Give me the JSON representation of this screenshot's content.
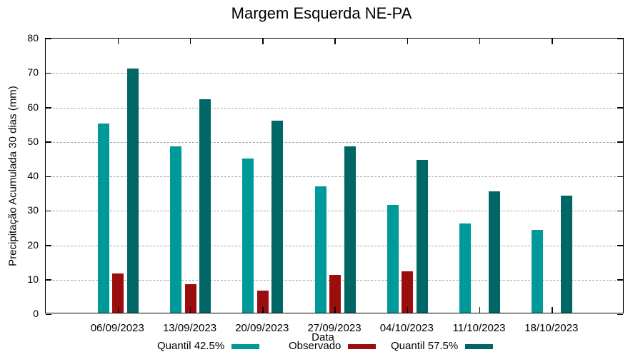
{
  "chart_data": {
    "type": "bar",
    "title": "Margem Esquerda NE-PA",
    "xlabel": "Data",
    "ylabel": "Precipitação Acumulada 30 dias (mm)",
    "categories": [
      "06/09/2023",
      "13/09/2023",
      "20/09/2023",
      "27/09/2023",
      "04/10/2023",
      "11/10/2023",
      "18/10/2023"
    ],
    "series": [
      {
        "name": "Quantil 42.5%",
        "color": "#009999",
        "values": [
          55.3,
          48.8,
          45.2,
          37.1,
          31.8,
          26.4,
          24.5
        ]
      },
      {
        "name": "Observado",
        "color": "#9b0e0e",
        "values": [
          11.8,
          8.8,
          6.9,
          11.5,
          12.4,
          null,
          null
        ]
      },
      {
        "name": "Quantil 57.5%",
        "color": "#006666",
        "values": [
          71.2,
          62.3,
          56.2,
          48.8,
          44.8,
          35.6,
          34.4
        ]
      }
    ],
    "ylim": [
      0,
      80
    ],
    "y_ticks": [
      0,
      10,
      20,
      30,
      40,
      50,
      60,
      70,
      80
    ],
    "grid": true,
    "grid_color": "#a6a6a6",
    "axis_color": "#000000",
    "legend_position": "bottom"
  }
}
